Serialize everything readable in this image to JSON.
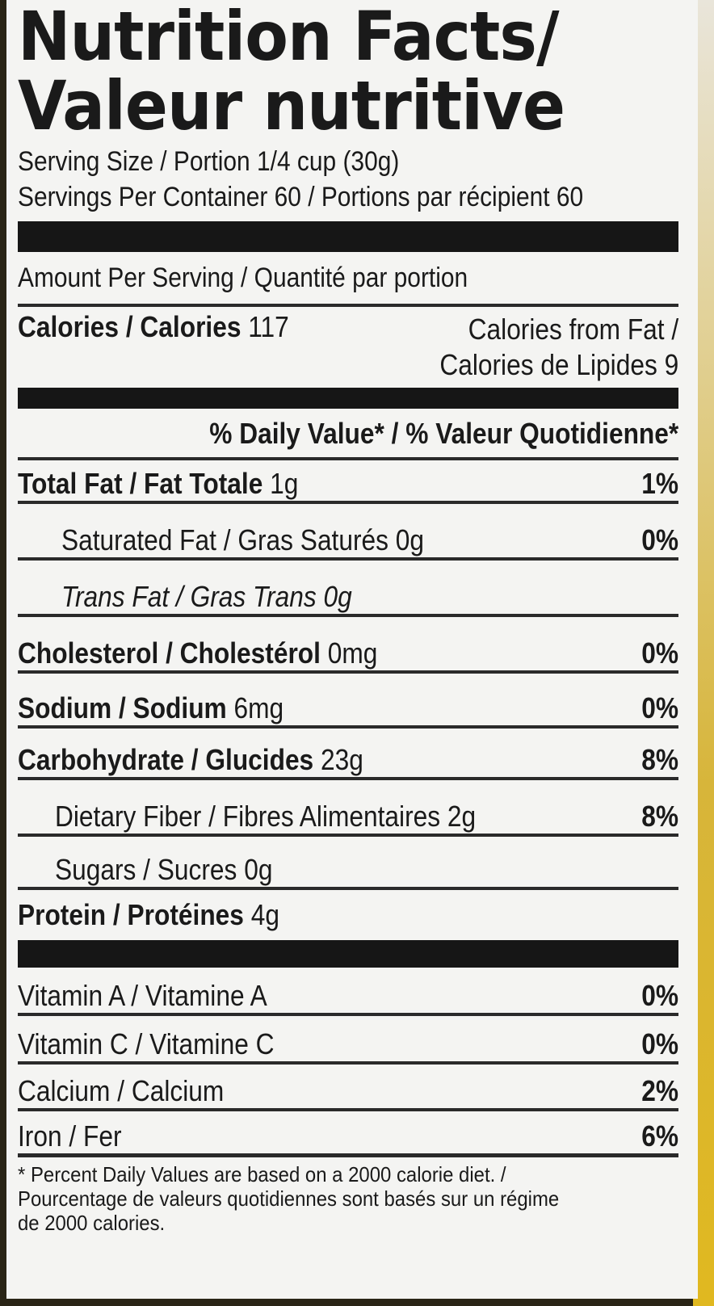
{
  "title_line1": "Nutrition Facts/",
  "title_line2": "Valeur nutritive",
  "serving_size": "Serving Size / Portion 1/4 cup (30g)",
  "servings_per_container": "Servings Per Container 60 / Portions par récipient 60",
  "amount_per_serving": "Amount Per Serving / Quantité par portion",
  "calories": {
    "label": "Calories / Calories",
    "value": "117"
  },
  "calories_from_fat": {
    "line1": "Calories from Fat /",
    "line2": "Calories de Lipides 9"
  },
  "daily_value_header": "% Daily Value* / % Valeur Quotidienne*",
  "nutrients": [
    {
      "label": "Total Fat / Fat Totale",
      "amount": "1g",
      "dv": "1%"
    },
    {
      "label": "Saturated Fat / Gras Saturés",
      "amount": "0g",
      "dv": "0%"
    },
    {
      "label": "Trans Fat / Gras Trans",
      "amount": "0g",
      "dv": ""
    },
    {
      "label": "Cholesterol / Cholestérol",
      "amount": "0mg",
      "dv": "0%"
    },
    {
      "label": "Sodium / Sodium",
      "amount": "6mg",
      "dv": "0%"
    },
    {
      "label": "Carbohydrate / Glucides",
      "amount": "23g",
      "dv": "8%"
    },
    {
      "label": "Dietary Fiber / Fibres Alimentaires",
      "amount": "2g",
      "dv": "8%"
    },
    {
      "label": "Sugars / Sucres",
      "amount": "0g",
      "dv": ""
    },
    {
      "label": "Protein / Protéines",
      "amount": "4g",
      "dv": ""
    }
  ],
  "vitamins": [
    {
      "label": "Vitamin A / Vitamine A",
      "dv": "0%"
    },
    {
      "label": "Vitamin C / Vitamine C",
      "dv": "0%"
    },
    {
      "label": "Calcium / Calcium",
      "dv": "2%"
    },
    {
      "label": "Iron / Fer",
      "dv": "6%"
    }
  ],
  "footnote": {
    "line1": "* Percent Daily Values are based on a 2000 calorie diet. /",
    "line2": "Pourcentage de valeurs quotidiennes sont basés sur un régime",
    "line3": "de 2000 calories."
  }
}
